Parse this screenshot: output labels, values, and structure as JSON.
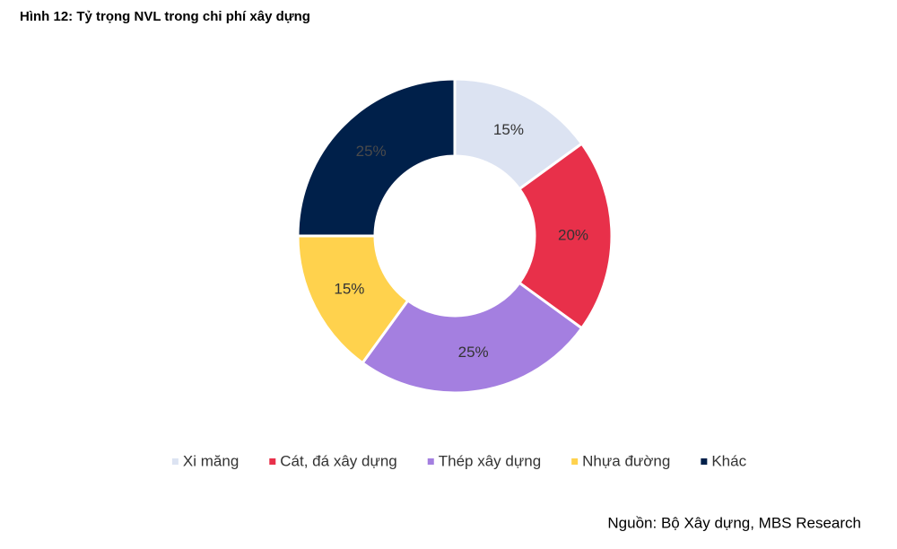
{
  "chart_data": {
    "type": "donut",
    "title": "Hình 12: Tỷ trọng NVL trong chi phí xây dựng",
    "categories": [
      "Xi măng",
      "Cát, đá xây dựng",
      "Thép xây dựng",
      "Nhựa đường",
      "Khác"
    ],
    "values": [
      15,
      20,
      25,
      15,
      25
    ],
    "value_labels": [
      "15%",
      "20%",
      "25%",
      "15%",
      "25%"
    ],
    "colors": [
      "#dce3f2",
      "#e8304a",
      "#a47fe0",
      "#ffd24d",
      "#00204a"
    ],
    "legend": "bottom",
    "source": "Nguồn: Bộ Xây dựng, MBS Research"
  }
}
